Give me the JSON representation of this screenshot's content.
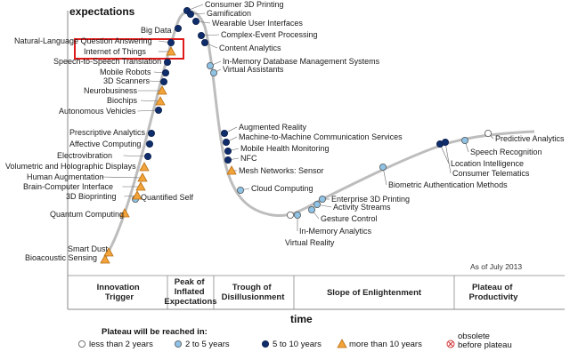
{
  "chart": {
    "y_axis_label": "expectations",
    "x_axis_label": "time",
    "as_of": "As of July 2013"
  },
  "phases": [
    {
      "id": "innovation-trigger",
      "lines": [
        "Innovation",
        "Trigger"
      ]
    },
    {
      "id": "peak",
      "lines": [
        "Peak of",
        "Inflated",
        "Expectations"
      ]
    },
    {
      "id": "trough",
      "lines": [
        "Trough of",
        "Disillusionment"
      ]
    },
    {
      "id": "slope",
      "lines": [
        "Slope of Enlightenment"
      ]
    },
    {
      "id": "plateau",
      "lines": [
        "Plateau of",
        "Productivity"
      ]
    }
  ],
  "legend": {
    "title": "Plateau will be reached in:",
    "items": [
      {
        "id": "lt2",
        "label": "less than 2 years",
        "marker": "white-circle"
      },
      {
        "id": "2to5",
        "label": "2 to 5 years",
        "marker": "light-blue-circle"
      },
      {
        "id": "5to10",
        "label": "5 to 10 years",
        "marker": "dark-blue-circle"
      },
      {
        "id": "gt10",
        "label": "more than 10 years",
        "marker": "orange-triangle"
      },
      {
        "id": "obsolete",
        "label_lines": [
          "obsolete",
          "before plateau"
        ],
        "marker": "red-x-circle"
      }
    ]
  },
  "marker_colors": {
    "white": "#ffffff",
    "light_blue": "#8ec3e6",
    "dark_blue": "#0f2d6b",
    "orange": "#f2a33a",
    "obsolete_red": "#d23b3b",
    "curve": "#bdbdbd",
    "highlight": "#e01a1a"
  },
  "technologies": [
    {
      "name": "Smart Dust",
      "marker": "gt10"
    },
    {
      "name": "Bioacoustic Sensing",
      "marker": "gt10"
    },
    {
      "name": "Quantum Computing",
      "marker": "gt10"
    },
    {
      "name": "Quantified Self",
      "marker": "2to5"
    },
    {
      "name": "3D Bioprinting",
      "marker": "gt10"
    },
    {
      "name": "Brain-Computer Interface",
      "marker": "gt10"
    },
    {
      "name": "Human Augmentation",
      "marker": "gt10"
    },
    {
      "name": "Volumetric and Holographic Displays",
      "marker": "gt10"
    },
    {
      "name": "Electrovibration",
      "marker": "5to10"
    },
    {
      "name": "Affective Computing",
      "marker": "5to10"
    },
    {
      "name": "Prescriptive Analytics",
      "marker": "5to10"
    },
    {
      "name": "Autonomous Vehicles",
      "marker": "5to10"
    },
    {
      "name": "Biochips",
      "marker": "gt10"
    },
    {
      "name": "Neurobusiness",
      "marker": "gt10"
    },
    {
      "name": "3D Scanners",
      "marker": "5to10"
    },
    {
      "name": "Mobile Robots",
      "marker": "5to10"
    },
    {
      "name": "Speech-to-Speech Translation",
      "marker": "5to10"
    },
    {
      "name": "Internet of Things",
      "marker": "gt10",
      "highlighted": true
    },
    {
      "name": "Natural-Language Question Answering",
      "marker": "5to10"
    },
    {
      "name": "Big Data",
      "marker": "5to10"
    },
    {
      "name": "Consumer 3D Printing",
      "marker": "5to10"
    },
    {
      "name": "Gamification",
      "marker": "5to10"
    },
    {
      "name": "Wearable User Interfaces",
      "marker": "5to10"
    },
    {
      "name": "Complex-Event Processing",
      "marker": "5to10"
    },
    {
      "name": "Content Analytics",
      "marker": "5to10"
    },
    {
      "name": "In-Memory Database Management Systems",
      "marker": "2to5"
    },
    {
      "name": "Virtual Assistants",
      "marker": "2to5"
    },
    {
      "name": "Augmented Reality",
      "marker": "5to10"
    },
    {
      "name": "Machine-to-Machine Communication Services",
      "marker": "5to10"
    },
    {
      "name": "Mobile Health Monitoring",
      "marker": "5to10"
    },
    {
      "name": "NFC",
      "marker": "5to10"
    },
    {
      "name": "Mesh Networks: Sensor",
      "marker": "gt10"
    },
    {
      "name": "Cloud Computing",
      "marker": "2to5"
    },
    {
      "name": "In-Memory Analytics",
      "marker": "2to5"
    },
    {
      "name": "Gesture Control",
      "marker": "2to5"
    },
    {
      "name": "Activity Streams",
      "marker": "2to5"
    },
    {
      "name": "Enterprise 3D Printing",
      "marker": "2to5"
    },
    {
      "name": "Virtual Reality",
      "marker": "lt2"
    },
    {
      "name": "Biometric Authentication Methods",
      "marker": "2to5"
    },
    {
      "name": "Location Intelligence",
      "marker": "5to10"
    },
    {
      "name": "Consumer Telematics",
      "marker": "5to10"
    },
    {
      "name": "Speech Recognition",
      "marker": "2to5"
    },
    {
      "name": "Predictive Analytics",
      "marker": "lt2"
    }
  ]
}
